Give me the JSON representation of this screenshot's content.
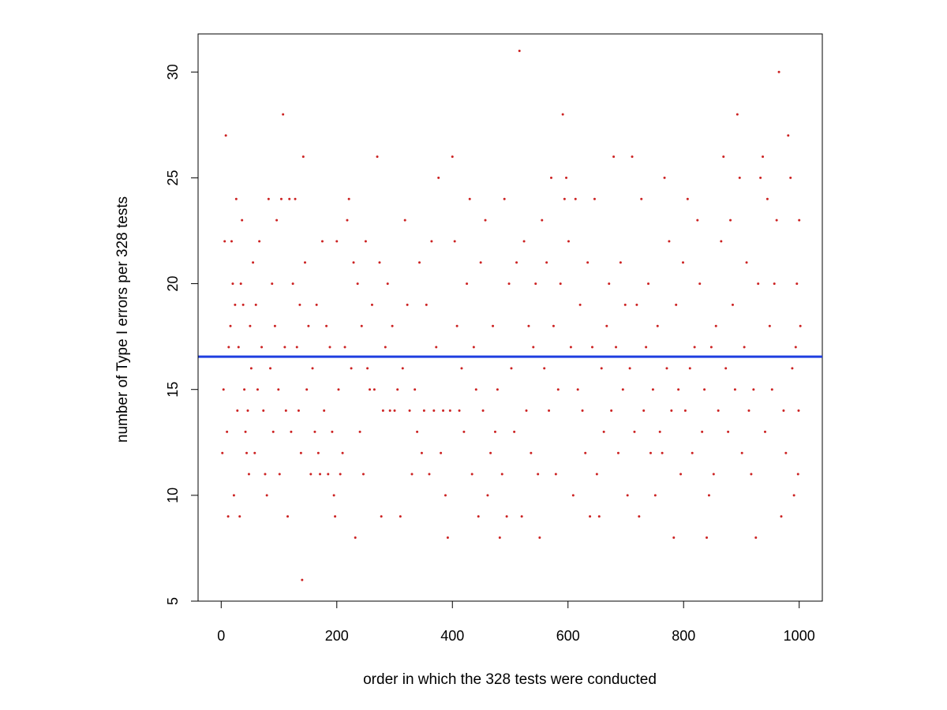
{
  "chart_data": {
    "type": "scatter",
    "title": "",
    "xlabel": "order in which the 328 tests were conducted",
    "ylabel": "number of Type I errors per 328 tests",
    "xlim": [
      -40,
      1040
    ],
    "ylim": [
      5,
      31.8
    ],
    "xticks": [
      0,
      200,
      400,
      600,
      800,
      1000
    ],
    "yticks": [
      5,
      10,
      15,
      20,
      25,
      30
    ],
    "grid": false,
    "legend": "none",
    "point_color": "#cc2222",
    "reference_line": {
      "orientation": "horizontal",
      "y": 16.55,
      "color": "#1f3fe0"
    },
    "series": [
      {
        "values": [
          [
            2,
            12
          ],
          [
            4,
            15
          ],
          [
            6,
            22
          ],
          [
            8,
            27
          ],
          [
            10,
            13
          ],
          [
            12,
            9
          ],
          [
            13,
            17
          ],
          [
            16,
            18
          ],
          [
            18,
            22
          ],
          [
            20,
            20
          ],
          [
            22,
            10
          ],
          [
            24,
            19
          ],
          [
            26,
            24
          ],
          [
            28,
            14
          ],
          [
            30,
            17
          ],
          [
            32,
            9
          ],
          [
            34,
            20
          ],
          [
            36,
            23
          ],
          [
            38,
            19
          ],
          [
            40,
            15
          ],
          [
            42,
            13
          ],
          [
            44,
            12
          ],
          [
            46,
            14
          ],
          [
            48,
            11
          ],
          [
            50,
            18
          ],
          [
            52,
            16
          ],
          [
            55,
            21
          ],
          [
            58,
            12
          ],
          [
            60,
            19
          ],
          [
            63,
            15
          ],
          [
            66,
            22
          ],
          [
            70,
            17
          ],
          [
            73,
            14
          ],
          [
            76,
            11
          ],
          [
            79,
            10
          ],
          [
            82,
            24
          ],
          [
            85,
            16
          ],
          [
            88,
            20
          ],
          [
            90,
            13
          ],
          [
            93,
            18
          ],
          [
            96,
            23
          ],
          [
            99,
            15
          ],
          [
            101,
            11
          ],
          [
            104,
            24
          ],
          [
            107,
            28
          ],
          [
            110,
            17
          ],
          [
            112,
            14
          ],
          [
            115,
            9
          ],
          [
            118,
            24
          ],
          [
            121,
            13
          ],
          [
            124,
            20
          ],
          [
            128,
            24
          ],
          [
            131,
            17
          ],
          [
            134,
            14
          ],
          [
            136,
            19
          ],
          [
            138,
            12
          ],
          [
            140,
            6
          ],
          [
            142,
            26
          ],
          [
            145,
            21
          ],
          [
            148,
            15
          ],
          [
            151,
            18
          ],
          [
            155,
            11
          ],
          [
            158,
            16
          ],
          [
            162,
            13
          ],
          [
            165,
            19
          ],
          [
            168,
            12
          ],
          [
            171,
            11
          ],
          [
            175,
            22
          ],
          [
            178,
            14
          ],
          [
            182,
            18
          ],
          [
            185,
            11
          ],
          [
            188,
            17
          ],
          [
            192,
            13
          ],
          [
            195,
            10
          ],
          [
            197,
            9
          ],
          [
            200,
            22
          ],
          [
            203,
            15
          ],
          [
            206,
            11
          ],
          [
            210,
            12
          ],
          [
            214,
            17
          ],
          [
            218,
            23
          ],
          [
            221,
            24
          ],
          [
            225,
            16
          ],
          [
            229,
            21
          ],
          [
            232,
            8
          ],
          [
            236,
            20
          ],
          [
            240,
            13
          ],
          [
            243,
            18
          ],
          [
            246,
            11
          ],
          [
            250,
            22
          ],
          [
            253,
            16
          ],
          [
            257,
            15
          ],
          [
            261,
            19
          ],
          [
            265,
            15
          ],
          [
            270,
            26
          ],
          [
            274,
            21
          ],
          [
            277,
            9
          ],
          [
            280,
            14
          ],
          [
            284,
            17
          ],
          [
            288,
            20
          ],
          [
            292,
            14
          ],
          [
            296,
            18
          ],
          [
            300,
            14
          ],
          [
            305,
            15
          ],
          [
            310,
            9
          ],
          [
            314,
            16
          ],
          [
            318,
            23
          ],
          [
            322,
            19
          ],
          [
            326,
            14
          ],
          [
            330,
            11
          ],
          [
            335,
            15
          ],
          [
            339,
            13
          ],
          [
            343,
            21
          ],
          [
            347,
            12
          ],
          [
            351,
            14
          ],
          [
            355,
            19
          ],
          [
            360,
            11
          ],
          [
            364,
            22
          ],
          [
            368,
            14
          ],
          [
            372,
            17
          ],
          [
            376,
            25
          ],
          [
            380,
            12
          ],
          [
            384,
            14
          ],
          [
            388,
            10
          ],
          [
            392,
            8
          ],
          [
            396,
            14
          ],
          [
            400,
            26
          ],
          [
            404,
            22
          ],
          [
            408,
            18
          ],
          [
            412,
            14
          ],
          [
            416,
            16
          ],
          [
            420,
            13
          ],
          [
            425,
            20
          ],
          [
            430,
            24
          ],
          [
            434,
            11
          ],
          [
            437,
            17
          ],
          [
            441,
            15
          ],
          [
            445,
            9
          ],
          [
            449,
            21
          ],
          [
            453,
            14
          ],
          [
            457,
            23
          ],
          [
            461,
            10
          ],
          [
            466,
            12
          ],
          [
            470,
            18
          ],
          [
            474,
            13
          ],
          [
            478,
            15
          ],
          [
            482,
            8
          ],
          [
            486,
            11
          ],
          [
            490,
            24
          ],
          [
            494,
            9
          ],
          [
            498,
            20
          ],
          [
            502,
            16
          ],
          [
            507,
            13
          ],
          [
            511,
            21
          ],
          [
            516,
            31
          ],
          [
            520,
            9
          ],
          [
            524,
            22
          ],
          [
            528,
            14
          ],
          [
            532,
            18
          ],
          [
            536,
            12
          ],
          [
            540,
            17
          ],
          [
            544,
            20
          ],
          [
            548,
            11
          ],
          [
            551,
            8
          ],
          [
            555,
            23
          ],
          [
            559,
            16
          ],
          [
            563,
            21
          ],
          [
            567,
            14
          ],
          [
            571,
            25
          ],
          [
            575,
            18
          ],
          [
            579,
            11
          ],
          [
            583,
            15
          ],
          [
            587,
            20
          ],
          [
            591,
            28
          ],
          [
            594,
            24
          ],
          [
            597,
            25
          ],
          [
            601,
            22
          ],
          [
            605,
            17
          ],
          [
            609,
            10
          ],
          [
            613,
            24
          ],
          [
            617,
            15
          ],
          [
            621,
            19
          ],
          [
            625,
            14
          ],
          [
            630,
            12
          ],
          [
            634,
            21
          ],
          [
            638,
            9
          ],
          [
            642,
            17
          ],
          [
            646,
            24
          ],
          [
            650,
            11
          ],
          [
            654,
            9
          ],
          [
            658,
            16
          ],
          [
            662,
            13
          ],
          [
            667,
            18
          ],
          [
            671,
            20
          ],
          [
            675,
            14
          ],
          [
            679,
            26
          ],
          [
            683,
            17
          ],
          [
            687,
            12
          ],
          [
            691,
            21
          ],
          [
            695,
            15
          ],
          [
            699,
            19
          ],
          [
            703,
            10
          ],
          [
            707,
            16
          ],
          [
            711,
            26
          ],
          [
            715,
            13
          ],
          [
            719,
            19
          ],
          [
            723,
            9
          ],
          [
            727,
            24
          ],
          [
            731,
            14
          ],
          [
            735,
            17
          ],
          [
            739,
            20
          ],
          [
            743,
            12
          ],
          [
            747,
            15
          ],
          [
            751,
            10
          ],
          [
            755,
            18
          ],
          [
            759,
            13
          ],
          [
            763,
            12
          ],
          [
            767,
            25
          ],
          [
            771,
            16
          ],
          [
            775,
            22
          ],
          [
            779,
            14
          ],
          [
            783,
            8
          ],
          [
            787,
            19
          ],
          [
            791,
            15
          ],
          [
            795,
            11
          ],
          [
            799,
            21
          ],
          [
            803,
            14
          ],
          [
            807,
            24
          ],
          [
            811,
            16
          ],
          [
            815,
            12
          ],
          [
            819,
            17
          ],
          [
            824,
            23
          ],
          [
            828,
            20
          ],
          [
            832,
            13
          ],
          [
            836,
            15
          ],
          [
            840,
            8
          ],
          [
            844,
            10
          ],
          [
            848,
            17
          ],
          [
            852,
            11
          ],
          [
            856,
            18
          ],
          [
            860,
            14
          ],
          [
            865,
            22
          ],
          [
            869,
            26
          ],
          [
            873,
            16
          ],
          [
            877,
            13
          ],
          [
            881,
            23
          ],
          [
            885,
            19
          ],
          [
            889,
            15
          ],
          [
            893,
            28
          ],
          [
            897,
            25
          ],
          [
            901,
            12
          ],
          [
            905,
            17
          ],
          [
            909,
            21
          ],
          [
            913,
            14
          ],
          [
            917,
            11
          ],
          [
            921,
            15
          ],
          [
            925,
            8
          ],
          [
            929,
            20
          ],
          [
            933,
            25
          ],
          [
            937,
            26
          ],
          [
            941,
            13
          ],
          [
            945,
            24
          ],
          [
            949,
            18
          ],
          [
            953,
            15
          ],
          [
            957,
            20
          ],
          [
            961,
            23
          ],
          [
            965,
            30
          ],
          [
            969,
            9
          ],
          [
            973,
            14
          ],
          [
            977,
            12
          ],
          [
            981,
            27
          ],
          [
            985,
            25
          ],
          [
            988,
            16
          ],
          [
            991,
            10
          ],
          [
            994,
            17
          ],
          [
            996,
            20
          ],
          [
            998,
            11
          ],
          [
            999,
            14
          ],
          [
            1000,
            23
          ],
          [
            1002,
            18
          ]
        ]
      }
    ]
  }
}
